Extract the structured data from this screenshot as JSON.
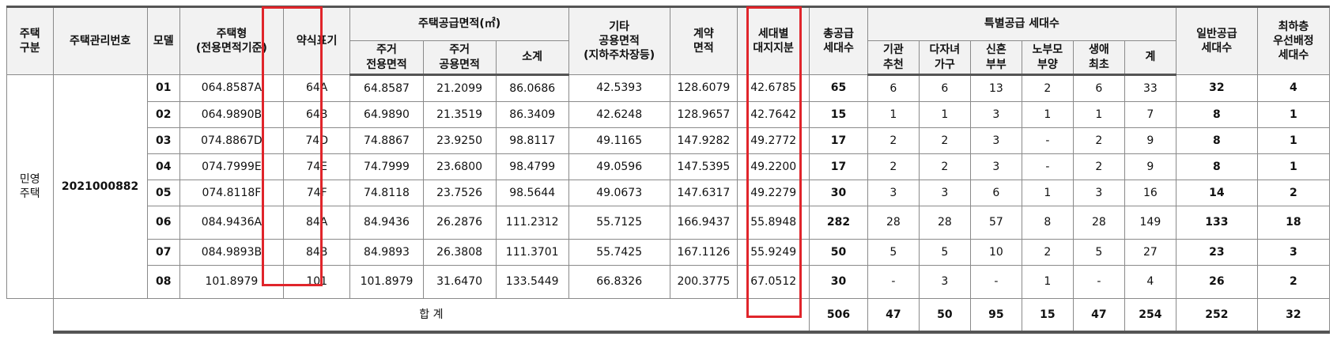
{
  "headers": {
    "type": "주택\n구분",
    "mgmt_no": "주택관리번호",
    "model": "모델",
    "house_type": "주택형\n(전용면적기준)",
    "abbr": "약식표기",
    "supply_area_group": "주택공급면적(㎡)",
    "exclusive": "주거\n전용면적",
    "common": "주거\n공용면적",
    "subtotal": "소계",
    "other_common": "기타\n공용면적\n(지하주차장등)",
    "contract": "계약\n면적",
    "land_share": "세대별\n대지지분",
    "total_supply": "총공급\n세대수",
    "special_group": "특별공급 세대수",
    "sp_inst": "기관\n추천",
    "sp_multi": "다자녀\n가구",
    "sp_newlywed": "신혼\n부부",
    "sp_elderly": "노부모\n부양",
    "sp_first": "생애\n최초",
    "sp_sum": "계",
    "general": "일반공급\n세대수",
    "lowest": "최하층\n우선배정\n세대수"
  },
  "house_category": "민영\n주택",
  "management_number": "2021000882",
  "rows": [
    {
      "model": "01",
      "type": "064.8587A",
      "abbr": "64A",
      "exclusive": "64.8587",
      "common": "21.2099",
      "subtotal": "86.0686",
      "other": "42.5393",
      "contract": "128.6079",
      "land": "42.6785",
      "total": "65",
      "inst": "6",
      "multi": "6",
      "newlywed": "13",
      "elderly": "2",
      "first": "6",
      "sp_sum": "33",
      "general": "32",
      "lowest": "4"
    },
    {
      "model": "02",
      "type": "064.9890B",
      "abbr": "64B",
      "exclusive": "64.9890",
      "common": "21.3519",
      "subtotal": "86.3409",
      "other": "42.6248",
      "contract": "128.9657",
      "land": "42.7642",
      "total": "15",
      "inst": "1",
      "multi": "1",
      "newlywed": "3",
      "elderly": "1",
      "first": "1",
      "sp_sum": "7",
      "general": "8",
      "lowest": "1"
    },
    {
      "model": "03",
      "type": "074.8867D",
      "abbr": "74D",
      "exclusive": "74.8867",
      "common": "23.9250",
      "subtotal": "98.8117",
      "other": "49.1165",
      "contract": "147.9282",
      "land": "49.2772",
      "total": "17",
      "inst": "2",
      "multi": "2",
      "newlywed": "3",
      "elderly": "-",
      "first": "2",
      "sp_sum": "9",
      "general": "8",
      "lowest": "1"
    },
    {
      "model": "04",
      "type": "074.7999E",
      "abbr": "74E",
      "exclusive": "74.7999",
      "common": "23.6800",
      "subtotal": "98.4799",
      "other": "49.0596",
      "contract": "147.5395",
      "land": "49.2200",
      "total": "17",
      "inst": "2",
      "multi": "2",
      "newlywed": "3",
      "elderly": "-",
      "first": "2",
      "sp_sum": "9",
      "general": "8",
      "lowest": "1"
    },
    {
      "model": "05",
      "type": "074.8118F",
      "abbr": "74F",
      "exclusive": "74.8118",
      "common": "23.7526",
      "subtotal": "98.5644",
      "other": "49.0673",
      "contract": "147.6317",
      "land": "49.2279",
      "total": "30",
      "inst": "3",
      "multi": "3",
      "newlywed": "6",
      "elderly": "1",
      "first": "3",
      "sp_sum": "16",
      "general": "14",
      "lowest": "2"
    },
    {
      "model": "06",
      "type": "084.9436A",
      "abbr": "84A",
      "exclusive": "84.9436",
      "common": "26.2876",
      "subtotal": "111.2312",
      "other": "55.7125",
      "contract": "166.9437",
      "land": "55.8948",
      "total": "282",
      "inst": "28",
      "multi": "28",
      "newlywed": "57",
      "elderly": "8",
      "first": "28",
      "sp_sum": "149",
      "general": "133",
      "lowest": "18"
    },
    {
      "model": "07",
      "type": "084.9893B",
      "abbr": "84B",
      "exclusive": "84.9893",
      "common": "26.3808",
      "subtotal": "111.3701",
      "other": "55.7425",
      "contract": "167.1126",
      "land": "55.9249",
      "total": "50",
      "inst": "5",
      "multi": "5",
      "newlywed": "10",
      "elderly": "2",
      "first": "5",
      "sp_sum": "27",
      "general": "23",
      "lowest": "3"
    },
    {
      "model": "08",
      "type": "101.8979",
      "abbr": "101",
      "exclusive": "101.8979",
      "common": "31.6470",
      "subtotal": "133.5449",
      "other": "66.8326",
      "contract": "200.3775",
      "land": "67.0512",
      "total": "30",
      "inst": "-",
      "multi": "3",
      "newlywed": "-",
      "elderly": "1",
      "first": "-",
      "sp_sum": "4",
      "general": "26",
      "lowest": "2"
    }
  ],
  "totals": {
    "label": "합 계",
    "total": "506",
    "inst": "47",
    "multi": "50",
    "newlywed": "95",
    "elderly": "15",
    "first": "47",
    "sp_sum": "254",
    "general": "252",
    "lowest": "32"
  },
  "highlight_color": "#e0252b"
}
